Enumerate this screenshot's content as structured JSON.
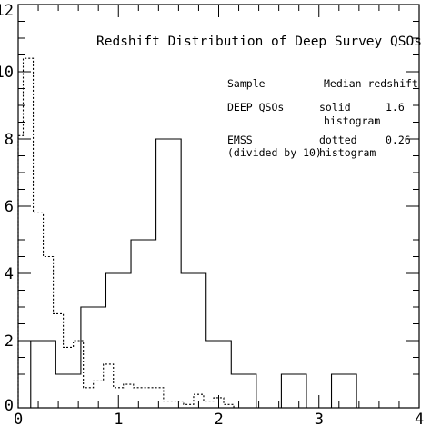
{
  "chart_data": {
    "type": "histogram",
    "title": "Redshift Distribution of Deep Survey QSOs",
    "xlabel": "",
    "ylabel": "",
    "xlim": [
      0,
      4
    ],
    "ylim": [
      0,
      12
    ],
    "grid": false,
    "legend": {
      "header": {
        "sample": "Sample",
        "median": "Median redshift"
      },
      "rows": [
        {
          "sample_line1": "DEEP QSOs",
          "sample_line2": "",
          "style_line1": "solid",
          "style_line2": "histogram",
          "median": "1.6"
        },
        {
          "sample_line1": "EMSS",
          "sample_line2": "(divided by 10)",
          "style_line1": "dotted",
          "style_line2": "histogram",
          "median": "0.26"
        }
      ]
    },
    "x_ticks": [
      {
        "value": 0,
        "label": "0"
      },
      {
        "value": 1,
        "label": "1"
      },
      {
        "value": 2,
        "label": "2"
      },
      {
        "value": 3,
        "label": "3"
      },
      {
        "value": 4,
        "label": "4"
      }
    ],
    "y_ticks": [
      {
        "value": 0,
        "label": "0"
      },
      {
        "value": 2,
        "label": "2"
      },
      {
        "value": 4,
        "label": "4"
      },
      {
        "value": 6,
        "label": "6"
      },
      {
        "value": 8,
        "label": "8"
      },
      {
        "value": 10,
        "label": "10"
      },
      {
        "value": 12,
        "label": "12"
      }
    ],
    "series": [
      {
        "style": "solid",
        "bin_width": 0.25,
        "bin_edges": [
          0.125,
          0.375,
          0.625,
          0.875,
          1.125,
          1.375,
          1.625,
          1.875,
          2.125,
          2.375,
          2.625,
          2.875,
          3.125,
          3.375,
          3.625
        ],
        "counts": [
          2,
          1,
          3,
          4,
          5,
          8,
          4,
          2,
          1,
          0,
          1,
          0,
          1,
          0
        ]
      },
      {
        "style": "dotted",
        "bin_edges": [
          0.0,
          0.05,
          0.15,
          0.25,
          0.35,
          0.45,
          0.55,
          0.65,
          0.75,
          0.85,
          0.95,
          1.05,
          1.15,
          1.25,
          1.35,
          1.45,
          1.55,
          1.65,
          1.75,
          1.85,
          1.95,
          2.05,
          2.15
        ],
        "counts": [
          8.1,
          10.4,
          5.8,
          4.5,
          2.8,
          1.8,
          2.0,
          0.6,
          0.8,
          1.3,
          0.6,
          0.7,
          0.6,
          0.6,
          0.6,
          0.2,
          0.2,
          0.1,
          0.4,
          0.2,
          0.3,
          0.1
        ]
      }
    ]
  }
}
